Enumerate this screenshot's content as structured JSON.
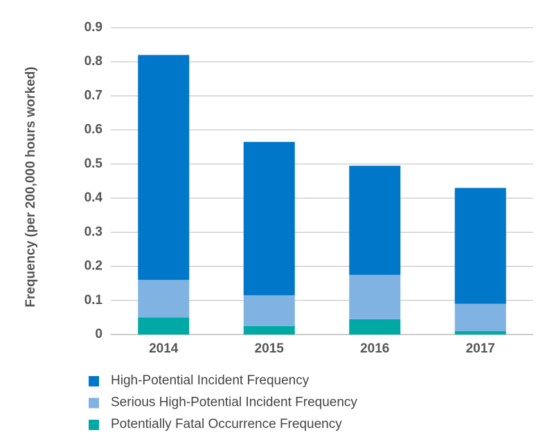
{
  "chart_data": {
    "type": "stacked_bar",
    "y_label": "Frequency (per 200,000 hours worked)",
    "categories": [
      "2014",
      "2015",
      "2016",
      "2017"
    ],
    "series": [
      {
        "name": "High-Potential Incident Frequency",
        "color": "#0077c8",
        "values": [
          0.66,
          0.45,
          0.32,
          0.34
        ]
      },
      {
        "name": "Serious High-Potential Incident Frequency",
        "color": "#80b3e2",
        "values": [
          0.11,
          0.09,
          0.13,
          0.08
        ]
      },
      {
        "name": "Potentially Fatal Occurrence Frequency",
        "color": "#00a9a4",
        "values": [
          0.05,
          0.025,
          0.045,
          0.01
        ]
      }
    ],
    "ylim": [
      0,
      0.9
    ],
    "yticks": [
      0,
      0.1,
      0.2,
      0.3,
      0.4,
      0.5,
      0.6,
      0.7,
      0.8,
      0.9
    ],
    "grid": true
  }
}
